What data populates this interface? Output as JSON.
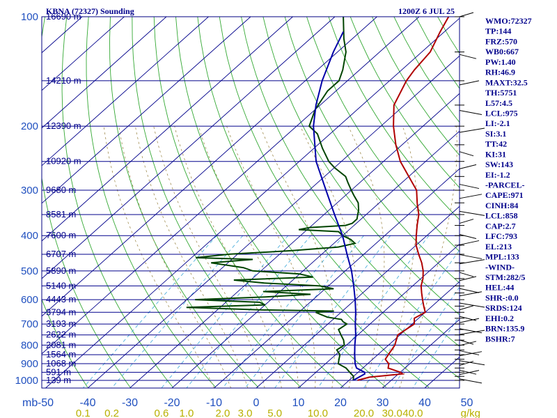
{
  "chart_data": {
    "type": "line",
    "title": "KBNA (72327) Sounding",
    "subtitle": "1200Z  6 JUL 25",
    "pressure_levels": [
      100,
      200,
      300,
      400,
      500,
      600,
      700,
      800,
      900,
      1000
    ],
    "height_labels": [
      {
        "p": 100,
        "label": "16690 m"
      },
      {
        "p": 150,
        "label": "14210 m"
      },
      {
        "p": 200,
        "label": "12390 m"
      },
      {
        "p": 250,
        "label": "10920 m"
      },
      {
        "p": 300,
        "label": "9680 m"
      },
      {
        "p": 350,
        "label": "8581 m"
      },
      {
        "p": 400,
        "label": "7600 m"
      },
      {
        "p": 450,
        "label": "6707 m"
      },
      {
        "p": 500,
        "label": "5890 m"
      },
      {
        "p": 550,
        "label": "5140 m"
      },
      {
        "p": 600,
        "label": "4443 m"
      },
      {
        "p": 650,
        "label": "3794 m"
      },
      {
        "p": 700,
        "label": "3193 m"
      },
      {
        "p": 750,
        "label": "2622 m"
      },
      {
        "p": 800,
        "label": "2081 m"
      },
      {
        "p": 850,
        "label": "1564 m"
      },
      {
        "p": 900,
        "label": "1068 m"
      },
      {
        "p": 950,
        "label": "591 m"
      },
      {
        "p": 1000,
        "label": "139 m"
      }
    ],
    "unit_label": "mb",
    "temp_ticks": [
      -50,
      -40,
      -30,
      -20,
      -10,
      0,
      10,
      20,
      30,
      40,
      50
    ],
    "temp_tick_labels": [
      "-50",
      "-40",
      "-30",
      "-20",
      "-10",
      "0",
      "10",
      "20",
      "30",
      "40",
      "50"
    ],
    "mixing_ratio_ticks": [
      {
        "w": 0.1,
        "label": "0.1"
      },
      {
        "w": 0.2,
        "label": "0.2"
      },
      {
        "w": 0.6,
        "label": "0.6"
      },
      {
        "w": 1.0,
        "label": "1.0"
      },
      {
        "w": 2.0,
        "label": "2.0"
      },
      {
        "w": 3.0,
        "label": "3.0"
      },
      {
        "w": 5.0,
        "label": "5.0"
      },
      {
        "w": 10.0,
        "label": "10.0"
      },
      {
        "w": 20.0,
        "label": "20.0"
      },
      {
        "w": 30.0,
        "label": "30.0"
      },
      {
        "w": 40.0,
        "label": "40.0"
      }
    ],
    "mixing_ratio_unit": "g/kg",
    "series": [
      {
        "color": "#b00000",
        "points": [
          [
            1000,
            22
          ],
          [
            980,
            24
          ],
          [
            960,
            31
          ],
          [
            950,
            30
          ],
          [
            925,
            26
          ],
          [
            900,
            25
          ],
          [
            875,
            23
          ],
          [
            850,
            22.5
          ],
          [
            800,
            21.5
          ],
          [
            775,
            20.5
          ],
          [
            750,
            19.5
          ],
          [
            725,
            20
          ],
          [
            700,
            20.5
          ],
          [
            675,
            19
          ],
          [
            650,
            20
          ],
          [
            625,
            18
          ],
          [
            600,
            16
          ],
          [
            575,
            14
          ],
          [
            550,
            12
          ],
          [
            525,
            10.5
          ],
          [
            500,
            8.5
          ],
          [
            475,
            6
          ],
          [
            450,
            3
          ],
          [
            425,
            0
          ],
          [
            400,
            -2.5
          ],
          [
            375,
            -5
          ],
          [
            350,
            -7.5
          ],
          [
            325,
            -11
          ],
          [
            300,
            -14.5
          ],
          [
            275,
            -20
          ],
          [
            250,
            -26
          ],
          [
            225,
            -31.5
          ],
          [
            200,
            -37
          ],
          [
            175,
            -42.5
          ],
          [
            150,
            -46
          ],
          [
            140,
            -47
          ],
          [
            125,
            -48
          ],
          [
            110,
            -51
          ],
          [
            100,
            -53
          ]
        ]
      },
      {
        "color": "#004400",
        "points": [
          [
            1000,
            21
          ],
          [
            975,
            20
          ],
          [
            950,
            18
          ],
          [
            925,
            16
          ],
          [
            900,
            13
          ],
          [
            875,
            12
          ],
          [
            850,
            11
          ],
          [
            825,
            9
          ],
          [
            800,
            9.5
          ],
          [
            775,
            8
          ],
          [
            750,
            6
          ],
          [
            725,
            4
          ],
          [
            700,
            4.5
          ],
          [
            690,
            3
          ],
          [
            680,
            2
          ],
          [
            670,
            -2
          ],
          [
            660,
            -4
          ],
          [
            650,
            -6
          ],
          [
            645,
            -2
          ],
          [
            640,
            -20
          ],
          [
            630,
            -38
          ],
          [
            620,
            -20
          ],
          [
            610,
            -22
          ],
          [
            600,
            -38
          ],
          [
            590,
            -22
          ],
          [
            580,
            -12
          ],
          [
            570,
            -24
          ],
          [
            560,
            -8
          ],
          [
            550,
            -12
          ],
          [
            540,
            -26
          ],
          [
            530,
            -34
          ],
          [
            520,
            -16
          ],
          [
            510,
            -20
          ],
          [
            500,
            -32
          ],
          [
            490,
            -35
          ],
          [
            475,
            -44
          ],
          [
            465,
            -35
          ],
          [
            460,
            -49
          ],
          [
            450,
            -42
          ],
          [
            440,
            -28
          ],
          [
            430,
            -18
          ],
          [
            420,
            -15
          ],
          [
            410,
            -17
          ],
          [
            400,
            -20
          ],
          [
            390,
            -22
          ],
          [
            385,
            -32
          ],
          [
            380,
            -30
          ],
          [
            375,
            -22
          ],
          [
            370,
            -21
          ],
          [
            360,
            -21
          ],
          [
            350,
            -22
          ],
          [
            340,
            -23
          ],
          [
            325,
            -25
          ],
          [
            310,
            -28
          ],
          [
            300,
            -30
          ],
          [
            285,
            -33
          ],
          [
            275,
            -35
          ],
          [
            260,
            -40
          ],
          [
            250,
            -43
          ],
          [
            230,
            -48
          ],
          [
            210,
            -53
          ],
          [
            200,
            -57
          ],
          [
            180,
            -60
          ],
          [
            160,
            -62
          ],
          [
            150,
            -62
          ],
          [
            140,
            -64
          ],
          [
            125,
            -68
          ],
          [
            115,
            -72
          ],
          [
            100,
            -78
          ]
        ]
      },
      {
        "color": "#0000a8",
        "points": [
          [
            1000,
            21
          ],
          [
            960,
            22
          ],
          [
            950,
            21.5
          ],
          [
            925,
            18.5
          ],
          [
            900,
            17
          ],
          [
            850,
            14.5
          ],
          [
            800,
            12
          ],
          [
            750,
            9.5
          ],
          [
            700,
            6.5
          ],
          [
            650,
            3.5
          ],
          [
            600,
            0
          ],
          [
            550,
            -4
          ],
          [
            500,
            -8.5
          ],
          [
            450,
            -14
          ],
          [
            400,
            -20
          ],
          [
            350,
            -27.5
          ],
          [
            300,
            -36
          ],
          [
            250,
            -46
          ],
          [
            200,
            -56
          ],
          [
            175,
            -61
          ],
          [
            150,
            -66
          ],
          [
            125,
            -71
          ],
          [
            110,
            -74
          ]
        ]
      }
    ],
    "indices": [
      "WMO:72327",
      "TP:144",
      "FRZ:570",
      "WB0:667",
      "PW:1.40",
      "RH:46.9",
      "MAXT:32.5",
      "TH:5751",
      "L57:4.5",
      "LCL:975",
      "LI:-2.1",
      "SI:3.1",
      "TT:42",
      "KI:31",
      "SW:143",
      "EI:-1.2",
      "-PARCEL-",
      "CAPE:971",
      "CINH:84",
      "LCL:858",
      "CAP:2.7",
      "LFC:793",
      "EL:213",
      "MPL:133",
      "-WIND-",
      "STM:282/5",
      "HEL:44",
      "SHR-:0.0",
      "SRDS:124",
      "EHI:0.2",
      "BRN:135.9",
      "BSHR:7"
    ],
    "xlim": [
      -50,
      50
    ],
    "ylim": [
      1000,
      100
    ],
    "grid": true,
    "skew": true
  }
}
